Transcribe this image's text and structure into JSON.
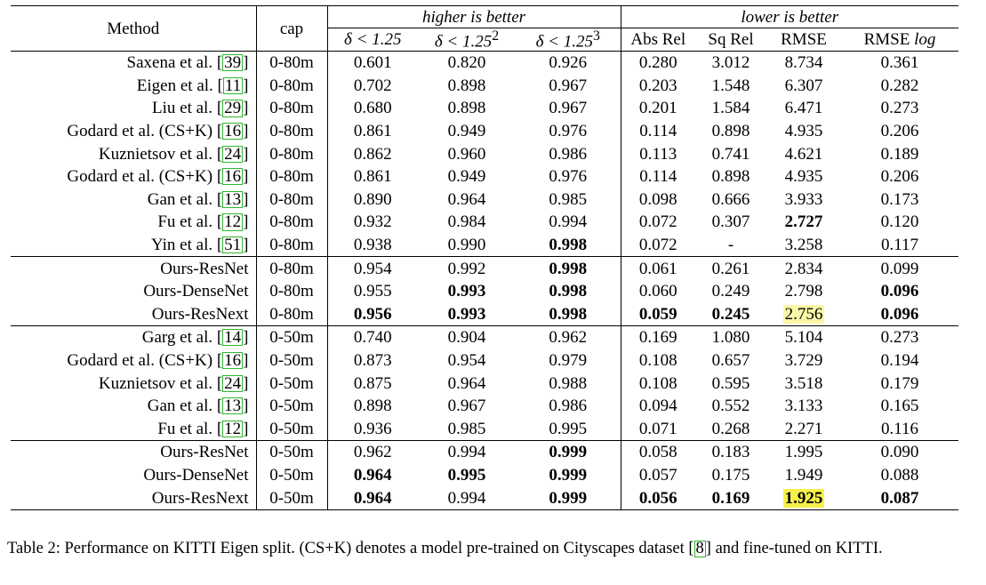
{
  "table": {
    "headers": {
      "method": "Method",
      "cap": "cap",
      "higher": "higher is better",
      "lower": "lower is better",
      "delta1_base": "δ < 1.25",
      "delta2_base": "δ < 1.25",
      "delta2_sup": "2",
      "delta3_base": "δ < 1.25",
      "delta3_sup": "3",
      "absrel": "Abs Rel",
      "sqrel": "Sq Rel",
      "rmse": "RMSE",
      "rmselog_a": "RMSE ",
      "rmselog_b": "log"
    },
    "groups": [
      {
        "rows": [
          {
            "method": "Saxena et al. [",
            "cite": "39",
            "close": "]",
            "cap": "0-80m",
            "vals": [
              "0.601",
              "0.820",
              "0.926",
              "0.280",
              "3.012",
              "8.734",
              "0.361"
            ],
            "bold": [
              false,
              false,
              false,
              false,
              false,
              false,
              false
            ],
            "hl": [
              false,
              false,
              false,
              false,
              false,
              false,
              false
            ]
          },
          {
            "method": "Eigen et al. [",
            "cite": "11",
            "close": "]",
            "cap": "0-80m",
            "vals": [
              "0.702",
              "0.898",
              "0.967",
              "0.203",
              "1.548",
              "6.307",
              "0.282"
            ],
            "bold": [
              false,
              false,
              false,
              false,
              false,
              false,
              false
            ],
            "hl": [
              false,
              false,
              false,
              false,
              false,
              false,
              false
            ]
          },
          {
            "method": "Liu et al. [",
            "cite": "29",
            "close": "]",
            "cap": "0-80m",
            "vals": [
              "0.680",
              "0.898",
              "0.967",
              "0.201",
              "1.584",
              "6.471",
              "0.273"
            ],
            "bold": [
              false,
              false,
              false,
              false,
              false,
              false,
              false
            ],
            "hl": [
              false,
              false,
              false,
              false,
              false,
              false,
              false
            ]
          },
          {
            "method": "Godard et al. (CS+K) [",
            "cite": "16",
            "close": "]",
            "cap": "0-80m",
            "vals": [
              "0.861",
              "0.949",
              "0.976",
              "0.114",
              "0.898",
              "4.935",
              "0.206"
            ],
            "bold": [
              false,
              false,
              false,
              false,
              false,
              false,
              false
            ],
            "hl": [
              false,
              false,
              false,
              false,
              false,
              false,
              false
            ]
          },
          {
            "method": "Kuznietsov et al. [",
            "cite": "24",
            "close": "]",
            "cap": "0-80m",
            "vals": [
              "0.862",
              "0.960",
              "0.986",
              "0.113",
              "0.741",
              "4.621",
              "0.189"
            ],
            "bold": [
              false,
              false,
              false,
              false,
              false,
              false,
              false
            ],
            "hl": [
              false,
              false,
              false,
              false,
              false,
              false,
              false
            ]
          },
          {
            "method": "Godard et al. (CS+K) [",
            "cite": "16",
            "close": "]",
            "cap": "0-80m",
            "vals": [
              "0.861",
              "0.949",
              "0.976",
              "0.114",
              "0.898",
              "4.935",
              "0.206"
            ],
            "bold": [
              false,
              false,
              false,
              false,
              false,
              false,
              false
            ],
            "hl": [
              false,
              false,
              false,
              false,
              false,
              false,
              false
            ]
          },
          {
            "method": "Gan et al. [",
            "cite": "13",
            "close": "]",
            "cap": "0-80m",
            "vals": [
              "0.890",
              "0.964",
              "0.985",
              "0.098",
              "0.666",
              "3.933",
              "0.173"
            ],
            "bold": [
              false,
              false,
              false,
              false,
              false,
              false,
              false
            ],
            "hl": [
              false,
              false,
              false,
              false,
              false,
              false,
              false
            ]
          },
          {
            "method": "Fu et al. [",
            "cite": "12",
            "close": "]",
            "cap": "0-80m",
            "vals": [
              "0.932",
              "0.984",
              "0.994",
              "0.072",
              "0.307",
              "2.727",
              "0.120"
            ],
            "bold": [
              false,
              false,
              false,
              false,
              false,
              true,
              false
            ],
            "hl": [
              false,
              false,
              false,
              false,
              false,
              false,
              false
            ]
          },
          {
            "method": "Yin et al. [",
            "cite": "51",
            "close": "]",
            "cap": "0-80m",
            "vals": [
              "0.938",
              "0.990",
              "0.998",
              "0.072",
              "-",
              "3.258",
              "0.117"
            ],
            "bold": [
              false,
              false,
              true,
              false,
              false,
              false,
              false
            ],
            "hl": [
              false,
              false,
              false,
              false,
              false,
              false,
              false
            ]
          }
        ]
      },
      {
        "rows": [
          {
            "method": "Ours-ResNet",
            "cite": "",
            "close": "",
            "cap": "0-80m",
            "vals": [
              "0.954",
              "0.992",
              "0.998",
              "0.061",
              "0.261",
              "2.834",
              "0.099"
            ],
            "bold": [
              false,
              false,
              true,
              false,
              false,
              false,
              false
            ],
            "hl": [
              false,
              false,
              false,
              false,
              false,
              false,
              false
            ]
          },
          {
            "method": "Ours-DenseNet",
            "cite": "",
            "close": "",
            "cap": "0-80m",
            "vals": [
              "0.955",
              "0.993",
              "0.998",
              "0.060",
              "0.249",
              "2.798",
              "0.096"
            ],
            "bold": [
              false,
              true,
              true,
              false,
              false,
              false,
              true
            ],
            "hl": [
              false,
              false,
              false,
              false,
              false,
              false,
              false
            ]
          },
          {
            "method": "Ours-ResNext",
            "cite": "",
            "close": "",
            "cap": "0-80m",
            "vals": [
              "0.956",
              "0.993",
              "0.998",
              "0.059",
              "0.245",
              "2.756",
              "0.096"
            ],
            "bold": [
              true,
              true,
              true,
              true,
              true,
              false,
              true
            ],
            "hl": [
              false,
              false,
              false,
              false,
              false,
              "light",
              false
            ]
          }
        ]
      },
      {
        "rows": [
          {
            "method": "Garg et al. [",
            "cite": "14",
            "close": "]",
            "cap": "0-50m",
            "vals": [
              "0.740",
              "0.904",
              "0.962",
              "0.169",
              "1.080",
              "5.104",
              "0.273"
            ],
            "bold": [
              false,
              false,
              false,
              false,
              false,
              false,
              false
            ],
            "hl": [
              false,
              false,
              false,
              false,
              false,
              false,
              false
            ]
          },
          {
            "method": "Godard et al. (CS+K) [",
            "cite": "16",
            "close": "]",
            "cap": "0-50m",
            "vals": [
              "0.873",
              "0.954",
              "0.979",
              "0.108",
              "0.657",
              "3.729",
              "0.194"
            ],
            "bold": [
              false,
              false,
              false,
              false,
              false,
              false,
              false
            ],
            "hl": [
              false,
              false,
              false,
              false,
              false,
              false,
              false
            ]
          },
          {
            "method": "Kuznietsov et al. [",
            "cite": "24",
            "close": "]",
            "cap": "0-50m",
            "vals": [
              "0.875",
              "0.964",
              "0.988",
              "0.108",
              "0.595",
              "3.518",
              "0.179"
            ],
            "bold": [
              false,
              false,
              false,
              false,
              false,
              false,
              false
            ],
            "hl": [
              false,
              false,
              false,
              false,
              false,
              false,
              false
            ]
          },
          {
            "method": "Gan et al. [",
            "cite": "13",
            "close": "]",
            "cap": "0-50m",
            "vals": [
              "0.898",
              "0.967",
              "0.986",
              "0.094",
              "0.552",
              "3.133",
              "0.165"
            ],
            "bold": [
              false,
              false,
              false,
              false,
              false,
              false,
              false
            ],
            "hl": [
              false,
              false,
              false,
              false,
              false,
              false,
              false
            ]
          },
          {
            "method": "Fu et al. [",
            "cite": "12",
            "close": "]",
            "cap": "0-50m",
            "vals": [
              "0.936",
              "0.985",
              "0.995",
              "0.071",
              "0.268",
              "2.271",
              "0.116"
            ],
            "bold": [
              false,
              false,
              false,
              false,
              false,
              false,
              false
            ],
            "hl": [
              false,
              false,
              false,
              false,
              false,
              false,
              false
            ]
          }
        ]
      },
      {
        "rows": [
          {
            "method": "Ours-ResNet",
            "cite": "",
            "close": "",
            "cap": "0-50m",
            "vals": [
              "0.962",
              "0.994",
              "0.999",
              "0.058",
              "0.183",
              "1.995",
              "0.090"
            ],
            "bold": [
              false,
              false,
              true,
              false,
              false,
              false,
              false
            ],
            "hl": [
              false,
              false,
              false,
              false,
              false,
              false,
              false
            ]
          },
          {
            "method": "Ours-DenseNet",
            "cite": "",
            "close": "",
            "cap": "0-50m",
            "vals": [
              "0.964",
              "0.995",
              "0.999",
              "0.057",
              "0.175",
              "1.949",
              "0.088"
            ],
            "bold": [
              true,
              true,
              true,
              false,
              false,
              false,
              false
            ],
            "hl": [
              false,
              false,
              false,
              false,
              false,
              false,
              false
            ]
          },
          {
            "method": "Ours-ResNext",
            "cite": "",
            "close": "",
            "cap": "0-50m",
            "vals": [
              "0.964",
              "0.994",
              "0.999",
              "0.056",
              "0.169",
              "1.925",
              "0.087"
            ],
            "bold": [
              true,
              false,
              true,
              true,
              true,
              true,
              true
            ],
            "hl": [
              false,
              false,
              false,
              false,
              false,
              "strong",
              false
            ]
          }
        ]
      }
    ]
  },
  "caption": {
    "text_a": "Table 2: Performance on KITTI Eigen split. (CS+K) denotes a model pre-trained on Cityscapes dataset [",
    "cite": "8",
    "text_b": "] and fine-tuned on KITTI."
  },
  "colors": {
    "cite_border": "#2eb82e",
    "highlight_light": "#fbf7a8",
    "highlight_strong": "#f7f04a"
  }
}
